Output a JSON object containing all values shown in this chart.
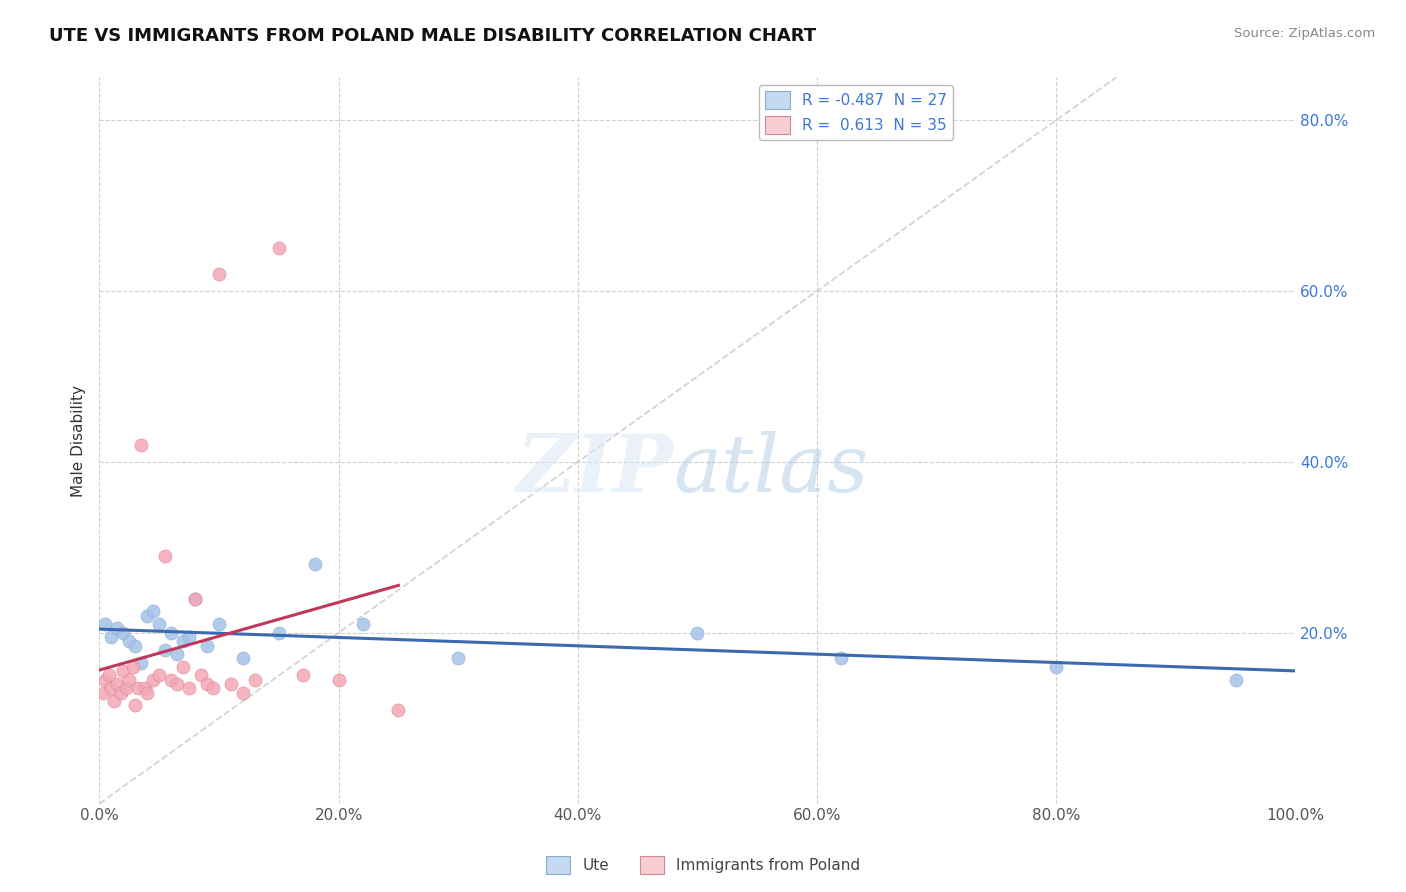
{
  "title": "UTE VS IMMIGRANTS FROM POLAND MALE DISABILITY CORRELATION CHART",
  "source": "Source: ZipAtlas.com",
  "ylabel": "Male Disability",
  "xlim": [
    0.0,
    100.0
  ],
  "ylim": [
    0.0,
    85.0
  ],
  "legend_label1": "Ute",
  "legend_label2": "Immigrants from Poland",
  "R1": -0.487,
  "N1": 27,
  "R2": 0.613,
  "N2": 35,
  "blue_scatter_color": "#a4c2e8",
  "pink_scatter_color": "#f4a7b4",
  "blue_line_color": "#3c6ab0",
  "pink_line_color": "#c0385a",
  "background_color": "#ffffff",
  "ute_x": [
    0.5,
    1.0,
    1.5,
    2.0,
    2.5,
    3.0,
    3.5,
    4.0,
    4.5,
    5.0,
    5.5,
    6.0,
    6.5,
    7.0,
    7.5,
    8.0,
    9.0,
    10.0,
    12.0,
    15.0,
    18.0,
    22.0,
    30.0,
    50.0,
    62.0,
    80.0,
    95.0
  ],
  "ute_y": [
    21.0,
    19.5,
    20.5,
    20.0,
    19.0,
    18.5,
    16.5,
    22.0,
    22.5,
    21.0,
    18.0,
    20.0,
    17.5,
    19.0,
    19.5,
    24.0,
    18.5,
    21.0,
    17.0,
    20.0,
    28.0,
    21.0,
    17.0,
    20.0,
    17.0,
    16.0,
    14.5
  ],
  "poland_x": [
    0.3,
    0.5,
    0.8,
    1.0,
    1.2,
    1.5,
    1.8,
    2.0,
    2.2,
    2.5,
    2.8,
    3.0,
    3.2,
    3.5,
    3.8,
    4.0,
    4.5,
    5.0,
    5.5,
    6.0,
    6.5,
    7.0,
    7.5,
    8.0,
    8.5,
    9.0,
    9.5,
    10.0,
    11.0,
    12.0,
    13.0,
    15.0,
    17.0,
    20.0,
    25.0
  ],
  "poland_y": [
    13.0,
    14.5,
    15.0,
    13.5,
    12.0,
    14.0,
    13.0,
    15.5,
    13.5,
    14.5,
    16.0,
    11.5,
    13.5,
    42.0,
    13.5,
    13.0,
    14.5,
    15.0,
    29.0,
    14.5,
    14.0,
    16.0,
    13.5,
    24.0,
    15.0,
    14.0,
    13.5,
    62.0,
    14.0,
    13.0,
    14.5,
    65.0,
    15.0,
    14.5,
    11.0
  ]
}
